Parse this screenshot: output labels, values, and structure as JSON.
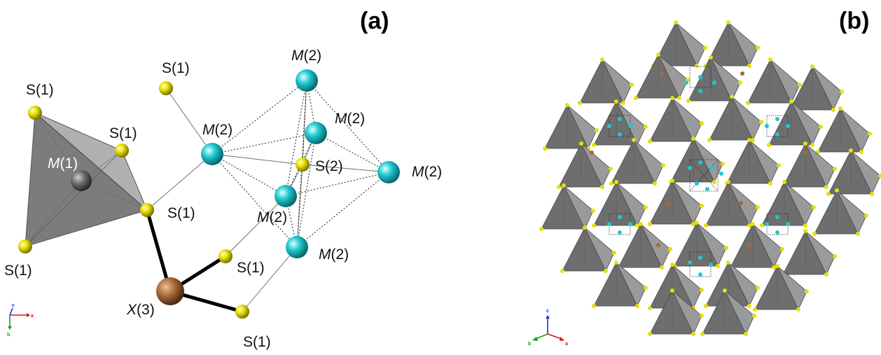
{
  "panels": {
    "a": {
      "label": "(a)"
    },
    "b": {
      "label": "(b)"
    }
  },
  "labels": {
    "s1": "S(1)",
    "s2": "S(2)",
    "m1_italic": "M",
    "m1_suffix": "(1)",
    "m2_italic": "M",
    "m2_suffix": "(2)",
    "x3_italic": "X",
    "x3_suffix": "(3)"
  },
  "axes": {
    "a": {
      "a": "a",
      "b": "b",
      "c": "c"
    },
    "b": {
      "a": "a",
      "b": "b",
      "c": "c"
    }
  },
  "colors": {
    "sulfur": "#e8e000",
    "metal_m2": "#20c8d0",
    "metal_m1": "#6a6a6a",
    "x3": "#a8683a",
    "polyhedron": "#8c8c8c"
  }
}
